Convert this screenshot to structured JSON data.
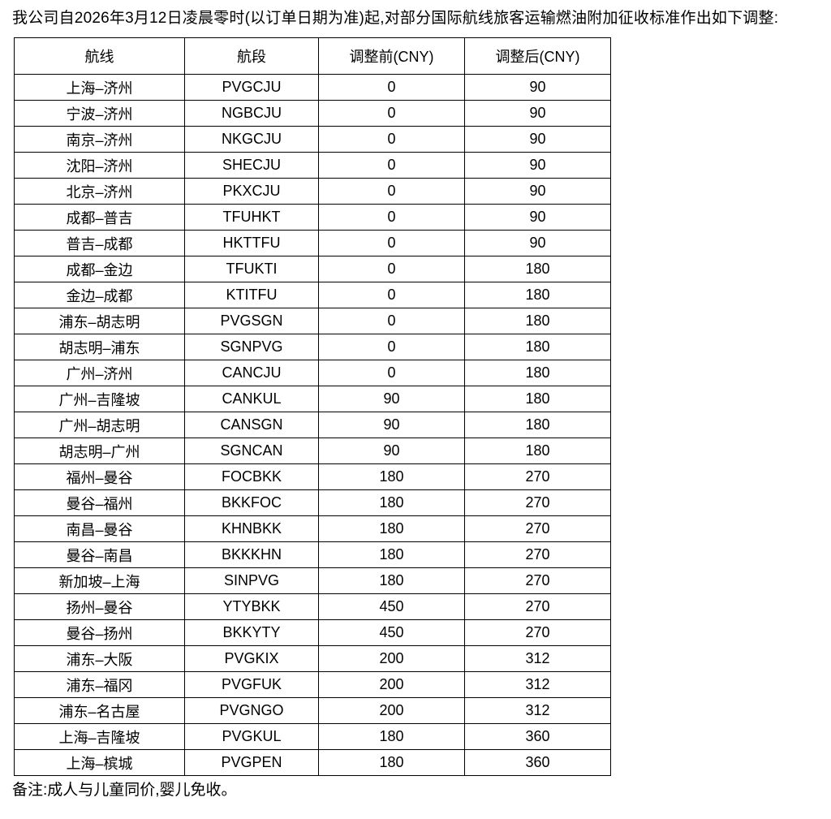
{
  "intro": "我公司自2026年3月12日凌晨零时(以订单日期为准)起,对部分国际航线旅客运输燃油附加征收标准作出如下调整:",
  "note": "备注:成人与儿童同价,婴儿免收。",
  "table": {
    "columns": [
      "航线",
      "航段",
      "调整前(CNY)",
      "调整后(CNY)"
    ],
    "rows": [
      {
        "route": "上海–济州",
        "segment": "PVGCJU",
        "before": "0",
        "after": "90"
      },
      {
        "route": "宁波–济州",
        "segment": "NGBCJU",
        "before": "0",
        "after": "90"
      },
      {
        "route": "南京–济州",
        "segment": "NKGCJU",
        "before": "0",
        "after": "90"
      },
      {
        "route": "沈阳–济州",
        "segment": "SHECJU",
        "before": "0",
        "after": "90"
      },
      {
        "route": "北京–济州",
        "segment": "PKXCJU",
        "before": "0",
        "after": "90"
      },
      {
        "route": "成都–普吉",
        "segment": "TFUHKT",
        "before": "0",
        "after": "90"
      },
      {
        "route": "普吉–成都",
        "segment": "HKTTFU",
        "before": "0",
        "after": "90"
      },
      {
        "route": "成都–金边",
        "segment": "TFUKTI",
        "before": "0",
        "after": "180"
      },
      {
        "route": "金边–成都",
        "segment": "KTITFU",
        "before": "0",
        "after": "180"
      },
      {
        "route": "浦东–胡志明",
        "segment": "PVGSGN",
        "before": "0",
        "after": "180"
      },
      {
        "route": "胡志明–浦东",
        "segment": "SGNPVG",
        "before": "0",
        "after": "180"
      },
      {
        "route": "广州–济州",
        "segment": "CANCJU",
        "before": "0",
        "after": "180"
      },
      {
        "route": "广州–吉隆坡",
        "segment": "CANKUL",
        "before": "90",
        "after": "180"
      },
      {
        "route": "广州–胡志明",
        "segment": "CANSGN",
        "before": "90",
        "after": "180"
      },
      {
        "route": "胡志明–广州",
        "segment": "SGNCAN",
        "before": "90",
        "after": "180"
      },
      {
        "route": "福州–曼谷",
        "segment": "FOCBKK",
        "before": "180",
        "after": "270"
      },
      {
        "route": "曼谷–福州",
        "segment": "BKKFOC",
        "before": "180",
        "after": "270"
      },
      {
        "route": "南昌–曼谷",
        "segment": "KHNBKK",
        "before": "180",
        "after": "270"
      },
      {
        "route": "曼谷–南昌",
        "segment": "BKKKHN",
        "before": "180",
        "after": "270"
      },
      {
        "route": "新加坡–上海",
        "segment": "SINPVG",
        "before": "180",
        "after": "270"
      },
      {
        "route": "扬州–曼谷",
        "segment": "YTYBKK",
        "before": "450",
        "after": "270"
      },
      {
        "route": "曼谷–扬州",
        "segment": "BKKYTY",
        "before": "450",
        "after": "270"
      },
      {
        "route": "浦东–大阪",
        "segment": "PVGKIX",
        "before": "200",
        "after": "312"
      },
      {
        "route": "浦东–福冈",
        "segment": "PVGFUK",
        "before": "200",
        "after": "312"
      },
      {
        "route": "浦东–名古屋",
        "segment": "PVGNGO",
        "before": "200",
        "after": "312"
      },
      {
        "route": "上海–吉隆坡",
        "segment": "PVGKUL",
        "before": "180",
        "after": "360"
      },
      {
        "route": "上海–槟城",
        "segment": "PVGPEN",
        "before": "180",
        "after": "360"
      }
    ]
  }
}
